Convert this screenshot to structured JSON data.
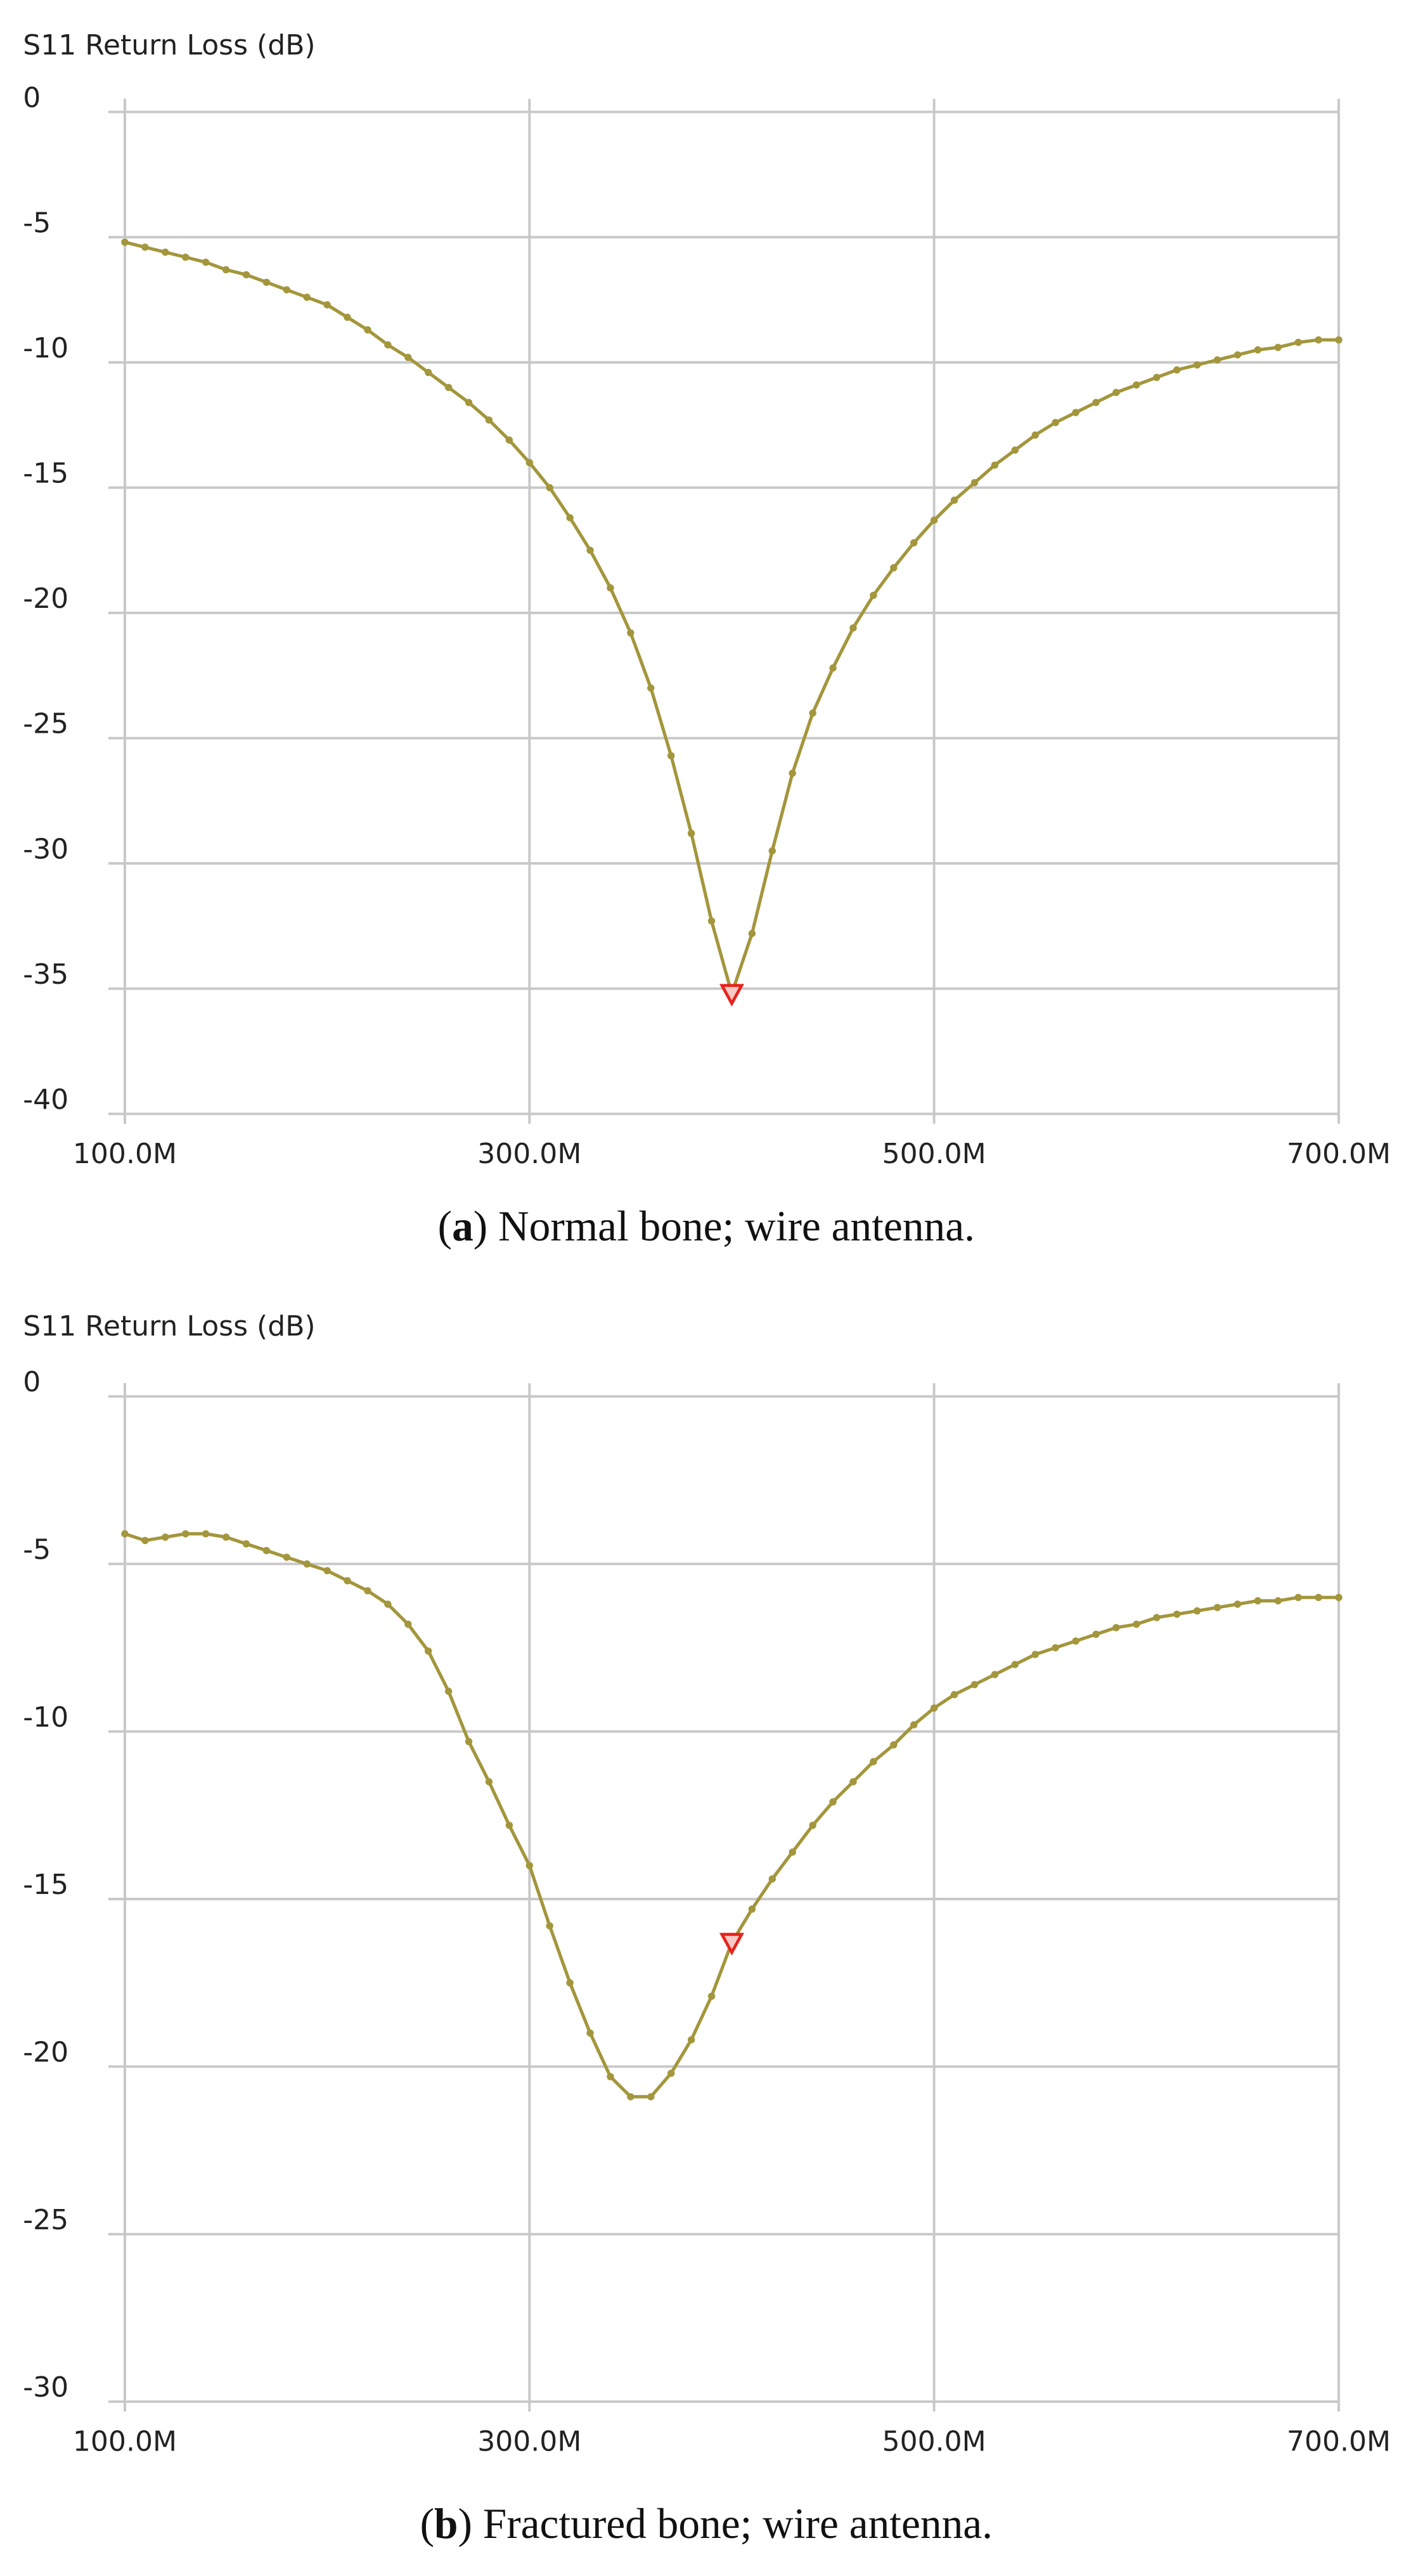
{
  "chart_data": [
    {
      "type": "line",
      "title": "S11 Return Loss (dB)",
      "caption": [
        "(",
        "a",
        ") Normal bone; wire antenna."
      ],
      "x": [
        100000000,
        110000000,
        120000000,
        130000000,
        140000000,
        150000000,
        160000000,
        170000000,
        180000000,
        190000000,
        200000000,
        210000000,
        220000000,
        230000000,
        240000000,
        250000000,
        260000000,
        270000000,
        280000000,
        290000000,
        300000000,
        310000000,
        320000000,
        330000000,
        340000000,
        350000000,
        360000000,
        370000000,
        380000000,
        390000000,
        400000000,
        410000000,
        420000000,
        430000000,
        440000000,
        450000000,
        460000000,
        470000000,
        480000000,
        490000000,
        500000000,
        510000000,
        520000000,
        530000000,
        540000000,
        550000000,
        560000000,
        570000000,
        580000000,
        590000000,
        600000000,
        610000000,
        620000000,
        630000000,
        640000000,
        650000000,
        660000000,
        670000000,
        680000000,
        690000000,
        700000000
      ],
      "series": [
        {
          "color": "#a3963c",
          "values": [
            -5.2,
            -5.4,
            -5.6,
            -5.8,
            -6.0,
            -6.3,
            -6.5,
            -6.8,
            -7.1,
            -7.4,
            -7.7,
            -8.2,
            -8.7,
            -9.3,
            -9.8,
            -10.4,
            -11.0,
            -11.6,
            -12.3,
            -13.1,
            -14.0,
            -15.0,
            -16.2,
            -17.5,
            -19.0,
            -20.8,
            -23.0,
            -25.7,
            -28.8,
            -32.3,
            -35.2,
            -32.8,
            -29.5,
            -26.4,
            -24.0,
            -22.2,
            -20.6,
            -19.3,
            -18.2,
            -17.2,
            -16.3,
            -15.5,
            -14.8,
            -14.1,
            -13.5,
            -12.9,
            -12.4,
            -12.0,
            -11.6,
            -11.2,
            -10.9,
            -10.6,
            -10.3,
            -10.1,
            -9.9,
            -9.7,
            -9.5,
            -9.4,
            -9.2,
            -9.1,
            -9.1
          ]
        }
      ],
      "marker": {
        "x": 400000000,
        "y": -35.2,
        "color": "#e8221c"
      },
      "xlim": [
        100000000,
        700000000
      ],
      "xticks": [
        {
          "value": 100000000,
          "label": "100.0M"
        },
        {
          "value": 300000000,
          "label": "300.0M"
        },
        {
          "value": 500000000,
          "label": "500.0M"
        },
        {
          "value": 700000000,
          "label": "700.0M"
        }
      ],
      "ylim": [
        -40,
        0
      ],
      "yticks": [
        0,
        -5,
        -10,
        -15,
        -20,
        -25,
        -30,
        -35,
        -40
      ],
      "grid": true
    },
    {
      "type": "line",
      "title": "S11 Return Loss (dB)",
      "caption": [
        "(",
        "b",
        ") Fractured bone; wire antenna."
      ],
      "x": [
        100000000,
        110000000,
        120000000,
        130000000,
        140000000,
        150000000,
        160000000,
        170000000,
        180000000,
        190000000,
        200000000,
        210000000,
        220000000,
        230000000,
        240000000,
        250000000,
        260000000,
        270000000,
        280000000,
        290000000,
        300000000,
        310000000,
        320000000,
        330000000,
        340000000,
        350000000,
        360000000,
        370000000,
        380000000,
        390000000,
        400000000,
        410000000,
        420000000,
        430000000,
        440000000,
        450000000,
        460000000,
        470000000,
        480000000,
        490000000,
        500000000,
        510000000,
        520000000,
        530000000,
        540000000,
        550000000,
        560000000,
        570000000,
        580000000,
        590000000,
        600000000,
        610000000,
        620000000,
        630000000,
        640000000,
        650000000,
        660000000,
        670000000,
        680000000,
        690000000,
        700000000
      ],
      "series": [
        {
          "color": "#a3963c",
          "values": [
            -4.1,
            -4.3,
            -4.2,
            -4.1,
            -4.1,
            -4.2,
            -4.4,
            -4.6,
            -4.8,
            -5.0,
            -5.2,
            -5.5,
            -5.8,
            -6.2,
            -6.8,
            -7.6,
            -8.8,
            -10.3,
            -11.5,
            -12.8,
            -14.0,
            -15.8,
            -17.5,
            -19.0,
            -20.3,
            -20.9,
            -20.9,
            -20.2,
            -19.2,
            -17.9,
            -16.3,
            -15.3,
            -14.4,
            -13.6,
            -12.8,
            -12.1,
            -11.5,
            -10.9,
            -10.4,
            -9.8,
            -9.3,
            -8.9,
            -8.6,
            -8.3,
            -8.0,
            -7.7,
            -7.5,
            -7.3,
            -7.1,
            -6.9,
            -6.8,
            -6.6,
            -6.5,
            -6.4,
            -6.3,
            -6.2,
            -6.1,
            -6.1,
            -6.0,
            -6.0,
            -6.0
          ]
        }
      ],
      "marker": {
        "x": 400000000,
        "y": -16.3,
        "color": "#e8221c"
      },
      "xlim": [
        100000000,
        700000000
      ],
      "xticks": [
        {
          "value": 100000000,
          "label": "100.0M"
        },
        {
          "value": 300000000,
          "label": "300.0M"
        },
        {
          "value": 500000000,
          "label": "500.0M"
        },
        {
          "value": 700000000,
          "label": "700.0M"
        }
      ],
      "ylim": [
        -30,
        0
      ],
      "yticks": [
        0,
        -5,
        -10,
        -15,
        -20,
        -25,
        -30
      ],
      "grid": true
    }
  ]
}
